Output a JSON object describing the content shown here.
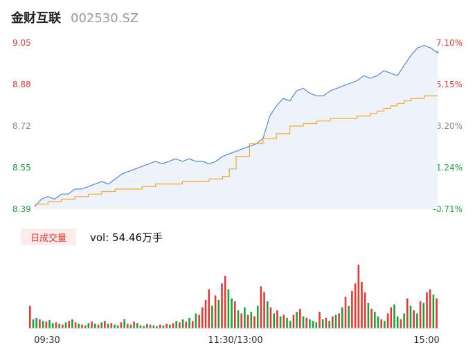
{
  "header": {
    "name": "金财互联",
    "code": "002530.SZ"
  },
  "volume_label": {
    "badge": "日成交量",
    "text": "vol: 54.46万手"
  },
  "colors": {
    "up": "#e53935",
    "down": "#1aa33a",
    "neutral": "#8a8a8a",
    "price_line": "#4f86e0",
    "avg_line": "#f5a623",
    "fill": "#eef3fb"
  },
  "chart_data": [
    {
      "type": "line",
      "title": "",
      "x_labels": [
        "09:30",
        "11:30/13:00",
        "15:00"
      ],
      "ylim": [
        8.39,
        9.05
      ],
      "y_ticks_left": [
        "9.05",
        "8.88",
        "8.72",
        "8.55",
        "8.39"
      ],
      "y_ticks_right": [
        "7.10%",
        "5.15%",
        "3.20%",
        "1.24%",
        "-0.71%"
      ],
      "series": [
        {
          "values": [
            8.4,
            8.43,
            8.44,
            8.43,
            8.45,
            8.45,
            8.47,
            8.47,
            8.48,
            8.49,
            8.5,
            8.49,
            8.51,
            8.53,
            8.54,
            8.55,
            8.56,
            8.57,
            8.58,
            8.57,
            8.58,
            8.59,
            8.58,
            8.59,
            8.58,
            8.58,
            8.57,
            8.58,
            8.6,
            8.61,
            8.62,
            8.63,
            8.64,
            8.65,
            8.67,
            8.76,
            8.8,
            8.83,
            8.82,
            8.86,
            8.87,
            8.85,
            8.84,
            8.84,
            8.86,
            8.87,
            8.88,
            8.89,
            8.9,
            8.92,
            8.91,
            8.92,
            8.94,
            8.93,
            8.92,
            8.96,
            9.0,
            9.03,
            9.04,
            9.03,
            9.01,
            9.02,
            9.01,
            9.02
          ],
          "x": [
            0,
            4,
            8,
            12,
            16,
            20,
            24,
            28,
            32,
            36,
            40,
            44,
            48,
            52,
            56,
            60,
            64,
            68,
            72,
            76,
            80,
            84,
            88,
            92,
            96,
            100,
            104,
            108,
            112,
            116,
            120,
            124,
            128,
            132,
            136,
            140,
            144,
            148,
            152,
            156,
            160,
            164,
            168,
            172,
            176,
            180,
            184,
            188,
            192,
            196,
            200,
            204,
            208,
            212,
            216,
            220,
            224,
            228,
            232,
            236,
            240,
            240,
            240,
            240
          ]
        },
        {
          "values": [
            8.41,
            8.42,
            8.43,
            8.44,
            8.45,
            8.46,
            8.47,
            8.47,
            8.48,
            8.49,
            8.49,
            8.5,
            8.5,
            8.51,
            8.52,
            8.55,
            8.6,
            8.65,
            8.67,
            8.69,
            8.72,
            8.73,
            8.74,
            8.75,
            8.75,
            8.76,
            8.76,
            8.77,
            8.78,
            8.79,
            8.8,
            8.81,
            8.82,
            8.83,
            8.83,
            8.84,
            8.84
          ],
          "x": [
            0,
            8,
            16,
            24,
            32,
            40,
            48,
            56,
            64,
            72,
            80,
            88,
            96,
            104,
            112,
            116,
            120,
            128,
            136,
            144,
            152,
            160,
            168,
            176,
            184,
            192,
            196,
            200,
            204,
            208,
            212,
            216,
            220,
            224,
            228,
            232,
            240
          ]
        }
      ]
    },
    {
      "type": "bar",
      "title": "",
      "series": [
        {
          "values": [
            30,
            12,
            14,
            12,
            10,
            9,
            11,
            7,
            8,
            6,
            5,
            8,
            10,
            12,
            8,
            6,
            5,
            4,
            7,
            9,
            6,
            5,
            8,
            10,
            6,
            7,
            5,
            4,
            8,
            12,
            6,
            5,
            9,
            7,
            4,
            3,
            6,
            5,
            4,
            3,
            5,
            4,
            6,
            5,
            7,
            10,
            8,
            12,
            9,
            14,
            10,
            20,
            18,
            28,
            38,
            52,
            30,
            44,
            38,
            60,
            70,
            52,
            40,
            36,
            24,
            20,
            28,
            18,
            22,
            16,
            30,
            56,
            48,
            36,
            28,
            20,
            24,
            16,
            18,
            14,
            10,
            18,
            22,
            26,
            16,
            14,
            12,
            10,
            8,
            22,
            12,
            14,
            10,
            16,
            18,
            20,
            28,
            42,
            30,
            50,
            60,
            85,
            62,
            48,
            34,
            26,
            22,
            16,
            12,
            10,
            20,
            28,
            32,
            16,
            12,
            20,
            40,
            30,
            24,
            20,
            36,
            34,
            48,
            52,
            45,
            40
          ],
          "up": [
            1,
            0,
            0,
            1,
            0,
            1,
            0,
            0,
            1,
            0,
            1,
            0,
            1,
            0,
            1,
            0,
            1,
            0,
            0,
            1,
            0,
            1,
            0,
            1,
            0,
            1,
            0,
            0,
            1,
            0,
            1,
            0,
            1,
            0,
            0,
            1,
            0,
            1,
            0,
            0,
            1,
            0,
            1,
            0,
            1,
            0,
            1,
            0,
            1,
            0,
            1,
            0,
            1,
            1,
            1,
            1,
            0,
            1,
            0,
            1,
            1,
            0,
            0,
            1,
            0,
            1,
            0,
            1,
            0,
            1,
            0,
            1,
            1,
            0,
            1,
            0,
            1,
            0,
            1,
            0,
            0,
            1,
            0,
            1,
            0,
            1,
            0,
            0,
            0,
            1,
            0,
            1,
            0,
            1,
            0,
            1,
            0,
            1,
            0,
            1,
            1,
            1,
            1,
            1,
            0,
            1,
            0,
            0,
            1,
            0,
            1,
            1,
            0,
            0,
            1,
            0,
            1,
            0,
            1,
            0,
            1,
            0,
            1,
            1,
            0,
            1
          ]
        }
      ]
    }
  ]
}
